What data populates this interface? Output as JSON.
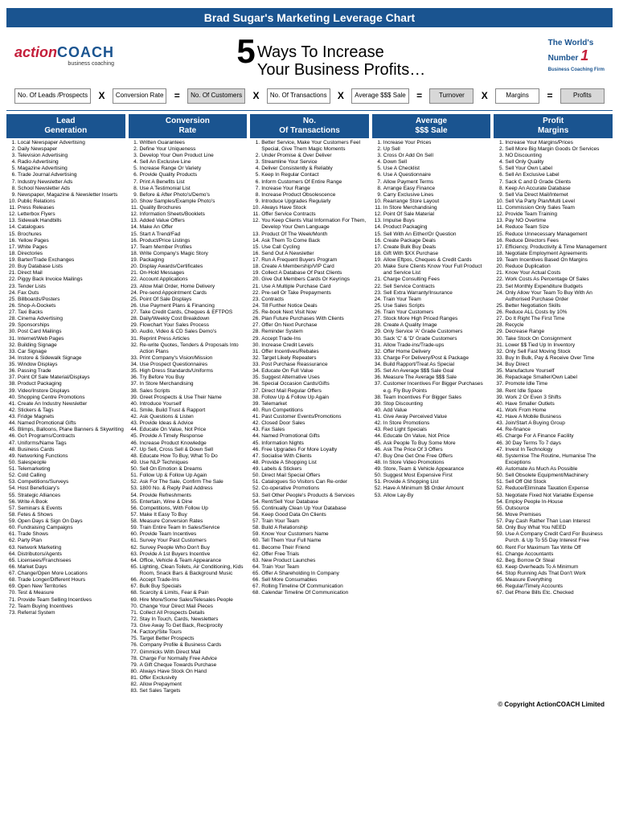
{
  "header": {
    "title": "Brad Sugar's Marketing Leverage Chart"
  },
  "logo": {
    "action": "action",
    "coach": "COACH",
    "tag": "business coaching"
  },
  "tagline": {
    "prefix": "The World's",
    "main": "Number",
    "one": "1",
    "sub": "Business Coaching Firm"
  },
  "big_five": {
    "num": "5",
    "line1": "Ways To Increase",
    "line2": "Your Business Profits…"
  },
  "formula": {
    "boxes": [
      {
        "label": "No. Of Leads /Prospects"
      },
      {
        "label": "Conversion Rate"
      },
      {
        "label": "No. Of Customers",
        "shaded": true
      },
      {
        "label": "No. Of Transactions"
      },
      {
        "label": "Average $$$ Sale"
      },
      {
        "label": "Turnover",
        "shaded": true
      },
      {
        "label": "Margins"
      },
      {
        "label": "Profits",
        "shaded": true
      }
    ],
    "ops": [
      "X",
      "=",
      "X",
      "X",
      "=",
      "X",
      "="
    ]
  },
  "columns": [
    {
      "title": "Lead Generation",
      "items": [
        "Local Newspaper Advertising",
        "Daily Newspaper",
        "Television Advertising",
        "Radio Advertising",
        "Magazine Advertising",
        "Trade Journal Advertising",
        "Industry Newsletter Ads",
        "School Newsletter Ads",
        "Newspaper, Magazine & Newsletter Inserts",
        "Public Relations",
        "Press Releases",
        "Letterbox Flyers",
        "Sidewalk Handbills",
        "Catalogues",
        "Brochures",
        "Yellow Pages",
        "White Pages",
        "Directories",
        "Barter/Trade Exchanges",
        "Buy Database Lists",
        "Direct Mail",
        "Piggy Back Invoice Mailings",
        "Tender Lists",
        "Fax Outs",
        "Billboards/Posters",
        "Shop-A-Dockets",
        "Taxi Backs",
        "Cinema Advertising",
        "Sponsorships",
        "Post Card Mailings",
        "Internet/Web Pages",
        "Building Signage",
        "Car Signage",
        "Instore & Sidewalk Signage",
        "Window Displays",
        "Passing Trade",
        "Point Of Sale Material/Displays",
        "Product Packaging",
        "Video/Instore Displays",
        "Shopping Centre Promotions",
        "Create An Industry Newsletter",
        "Stickers & Tags",
        "Fridge Magnets",
        "Named Promotional Gifts",
        "Blimps, Balloons, Plane Banners & Skywriting",
        "Go't Programs/Contracts",
        "Uniforms/Name Tags",
        "Business Cards",
        "Networking Functions",
        "Salespeople",
        "Telemarketing",
        "Cold Calling",
        "Competitions/Surveys",
        "Host Beneficiary's",
        "Strategic Alliances",
        "Write A Book",
        "Seminars & Events",
        "Fetes & Shows",
        "Open Days & Sign On Days",
        "Fundraising Campaigns",
        "Trade Shows",
        "Party Plan",
        "Network Marketing",
        "Distributors/Agents",
        "Licensees/Franchisees",
        "Market Days",
        "Change/Open More Locations",
        "Trade Longer/Different Hours",
        "Open New Territories",
        "Test & Measure",
        "Provide Team Selling Incentives",
        "Team Buying Incentives",
        "Referral System"
      ]
    },
    {
      "title": "Conversion Rate",
      "items": [
        "Written Guarantees",
        "Define Your Uniqueness",
        "Develop Your Own Product Line",
        "Sell An Exclusive Line",
        "Increase Range Or Variety",
        "Provide Quality Products",
        "Print A Benefits List",
        "Use A Testimonial List",
        "Before & After Photo's/Demo's",
        "Show Samples/Example Photo's",
        "Quality Brochures",
        "Information Sheets/Booklets",
        "Added Value Offers",
        "Make An Offer",
        "Start A Trend/Fad",
        "Product/Price Listings",
        "Team Member Profiles",
        "Write Company's Magic Story",
        "Packaging",
        "Display Awards/Certificates",
        "On-Hold Messages",
        "Account Applications",
        "Allow Mail Order, Home Delivery",
        "Pre-send Appointment Cards",
        "Point Of Sale Displays",
        "Use Payment Plans & Financing",
        "Take Credit Cards, Cheques & EFTPOS",
        "Daily/Weekly Cost Breakdown",
        "Flowchart Your Sales Process",
        "Audio, Video & CD Sales Demo's",
        "Reprint Press Articles",
        "Re-write Quotes, Tenders & Proposals Into Action Plans",
        "Print Company's Vision/Mission",
        "Use Prospect Questionnaires",
        "High Dress Standards/Uniforms",
        "Try Before You Buy",
        "In Store Merchandising",
        "Sales Scripts",
        "Greet Prospects & Use Their Name",
        "Introduce Yourself",
        "Smile, Build Trust & Rapport",
        "Ask Questions & Listen",
        "Provide Ideas & Advice",
        "Educate On Value, Not Price",
        "Provide A Timely Response",
        "Increase Product Knowledge",
        "Up Sell, Cross Sell & Down Sell",
        "Educate How To Buy, What To Do",
        "Use NLP Techniques",
        "Sell On Emotion & Dreams",
        "Follow Up & Follow Up Again",
        "Ask For The Sale, Confirm The Sale",
        "1800 No. & Reply Paid Address",
        "Provide Refreshments",
        "Entertain, Wine & Dine",
        "Competitions, With Follow Up",
        "Make It Easy To Buy",
        "Measure Conversion Rates",
        "Train Entire Team In Sales/Service",
        "Provide Team Incentives",
        "Survey Your Past Customers",
        "Survey People Who Don't Buy",
        "Provide A 1st Buyers Incentive",
        "Office, Vehicle & Team Appearance",
        "Lighting, Clean Toilets, Air Conditioning, Kids Room, Snack Bars & Background Music",
        "Accept Trade-Ins",
        "Bulk Buy Specials",
        "Scarcity & Limits, Fear & Pain",
        "Hire More/Some Sales/Telesales People",
        "Change Your Direct Mail Pieces",
        "Collect All Prospects Details",
        "Stay In Touch, Cards, Newsletters",
        "Give Away To Get Back, Reciprocity",
        "Factory/Site Tours",
        "Target Better Prospects",
        "Company Profile & Business Cards",
        "Gimmicks With Direct Mail",
        "Charge For Normally Free Advice",
        "A Gift Cheque Towards Purchase",
        "Always Have Stock On Hand",
        "Offer Exclusivity",
        "Allow Prepayment",
        "Set Sales Targets"
      ]
    },
    {
      "title": "No. Of Transactions",
      "items": [
        "Better Service, Make Your Customers Feel Special, Give Them Magic Moments",
        "Under Promise & Over Deliver",
        "Streamline Your Service",
        "Deliver Consistently & Reliably",
        "Keep In Regular Contact",
        "Inform Customers Of Entire Range",
        "Increase Your Range",
        "Increase Product Obsolescence",
        "Introduce Upgrades Regularly",
        "Always Have Stock",
        "Offer Service Contracts",
        "You Keep Clients Vital Information For Them, Develop Your Own Language",
        "Product Of The Week/Month",
        "Ask Them To Come Back",
        "Use Call Cycling",
        "Send Out A Newsletter",
        "Run A Frequent Buyers Program",
        "Create A Membership/VIP Card",
        "Collect A Database Of Past Clients",
        "Give Out Members Cards Or Keyrings",
        "Use A Multiple Purchase Card",
        "Pre-sell Or Take Prepayments",
        "Contracts",
        "Till Further Notice Deals",
        "Re-book Next Visit Now",
        "Plan Future Purchases With Clients",
        "Offer On Next Purchase",
        "Reminder System",
        "Accept Trade-Ins",
        "Increase Credit Levels",
        "Offer Incentives/Rebates",
        "Target Likely Repeaters",
        "Post Purchase Reassurance",
        "Educate On Full Value",
        "Suggest Alternative Uses",
        "Special Occasion Cards/Gifts",
        "Direct Mail Regular Offers",
        "Follow Up & Follow Up Again",
        "Telemarket",
        "Run Competitions",
        "Past Customer Events/Promotions",
        "Closed Door Sales",
        "Fax Sales",
        "Named Promotional Gifts",
        "Information Nights",
        "Free Upgrades For More Loyalty",
        "Socialise With Clients",
        "Provide A Shopping List",
        "Labels & Stickers",
        "Direct Mail Special Offers",
        "Catalogues So Visitors Can Re-order",
        "Co-operative Promotions",
        "Sell Other People's Products & Services",
        "Rent/Sell Your Database",
        "Continually Clean Up Your Database",
        "Keep Good Data On Clients",
        "Train Your Team",
        "Build A Relationship",
        "Know Your Customers Name",
        "Tell Them Your Full Name",
        "Become Their Friend",
        "Offer Free Trials",
        "New Product Launches",
        "Train Your Team",
        "Offer A Shareholding In Company",
        "Sell More Consumables",
        "Rolling Timeline Of Communication",
        "Calendar Timeline Of Communication"
      ]
    },
    {
      "title": "Average $$$ Sale",
      "items": [
        "Increase Your Prices",
        "Up Sell",
        "Cross Or Add On Sell",
        "Down Sell",
        "Use A Checklist",
        "Use A Questionnaire",
        "Allow Payment Terms",
        "Arrange Easy Finance",
        "Carry Exclusive Lines",
        "Rearrange Store Layout",
        "In Store Merchandising",
        "Point Of Sale Material",
        "Impulse Buys",
        "Product Packaging",
        "Sell With An Either/Or Question",
        "Create Package Deals",
        "Create Bulk Buy Deals",
        "Gift With $XX Purchase",
        "Allow Eftpos, Cheques & Credit Cards",
        "Make Sure Clients Know Your Full Product and Service List",
        "Charge Consulting Fees",
        "Sell Service Contracts",
        "Sell Extra Warranty/Insurance",
        "Train Your Team",
        "Use Sales Scripts",
        "Train Your Customers",
        "Stock More High Priced Ranges",
        "Create A Quality Image",
        "Only Service 'A' Grade Customers",
        "Sack 'C' & 'D' Grade Customers",
        "Allow Trade-ins/Trade-ups",
        "Offer Home Delivery",
        "Charge For Delivery/Post & Package",
        "Build Rapport/Treat As Special",
        "Set An Average $$$ Sale Goal",
        "Measure The Average $$$ Sale",
        "Customer Incentives For Bigger Purchases e.g. Fly Buy Points",
        "Team Incentives For Bigger Sales",
        "Stop Discounting",
        "Add Value",
        "Give Away Perceived Value",
        "In Store Promotions",
        "Red Light Specials",
        "Educate On Value, Not Price",
        "Ask People To Buy Some More",
        "Ask The Price Of 3 Offers",
        "Buy One Get One Free Offers",
        "In Store Video Promotions",
        "Store, Team & Vehicle Appearance",
        "Suggest Most Expensive First",
        "Provide A Shopping List",
        "Have A Minimum $$ Order Amount",
        "Allow Lay-By"
      ]
    },
    {
      "title": "Profit Margins",
      "items": [
        "Increase Your Margins/Prices",
        "Sell More Big Margin Goods Or Services",
        "NO Discounting",
        "Sell Only Quality",
        "Sell Your Own Label",
        "Sell An Exclusive Label",
        "Sack C and D Grade Clients",
        "Keep An Accurate Database",
        "Sell Via Direct Mail/Internet",
        "Sell Via Party Plan/Multi Level",
        "Commission Only Sales Team",
        "Provide Team Training",
        "Pay NO Overtime",
        "Reduce Team Size",
        "Reduce Unnecessary Management",
        "Reduce Directors Fees",
        "Efficiency, Productivity & Time Management",
        "Negotiate Employment Agreements",
        "Team Incentives Based On Margins",
        "Reduce Duplication",
        "Know Your Actual Costs",
        "Work Costs As Percentage Of Sales",
        "Set Monthly Expenditure Budgets",
        "Only Allow Your Team To Buy With An Authorised Purchase Order",
        "Better Negotiation Skills",
        "Reduce ALL Costs by 10%",
        "Do It Right The First Time",
        "Recycle",
        "Decrease Range",
        "Take Stock On Consignment",
        "Lower $$ Tied Up In Inventory",
        "Only Sell Fast Moving Stock",
        "Buy In Bulk, Pay & Receive Over Time",
        "Buy Direct",
        "Manufacture Yourself",
        "Repackage Smaller/Own Label",
        "Promote Idle Time",
        "Rent Idle Space",
        "Work 2 Or Even 3 Shifts",
        "Have Smaller Outlets",
        "Work From Home",
        "Have A Mobile Business",
        "Join/Start A Buying Group",
        "Re-finance",
        "Charge For A Finance Facility",
        "30 Day Terms To 7 days",
        "Invest In Technology",
        "Systemise The Routine, Humanise The Exceptions",
        "Automate As Much As Possible",
        "Sell Obsolete Equipment/Machinery",
        "Sell Off Old Stock",
        "Reduce/Eliminate Taxation Expense",
        "Negotiate Fixed Not Variable Expense",
        "Employ People In-House",
        "Outsource",
        "Move Premises",
        "Pay Cash Rather Than Loan Interest",
        "Only Buy What You NEED",
        "Use A Company Credit Card For Business Purch. & Up To 55 Day Interest Free",
        "Rent For Maximum Tax Write Off",
        "Change Accountants",
        "Beg, Borrow Or Steal",
        "Keep Overheads To A Minimum",
        "Stop Running Ads That Don't Work",
        "Measure Everything",
        "Regular/Timely Accounts",
        "Get Phone Bills Etc. Checked"
      ]
    }
  ],
  "footer": {
    "text": "© Copyright ActionCOACH Limited"
  }
}
